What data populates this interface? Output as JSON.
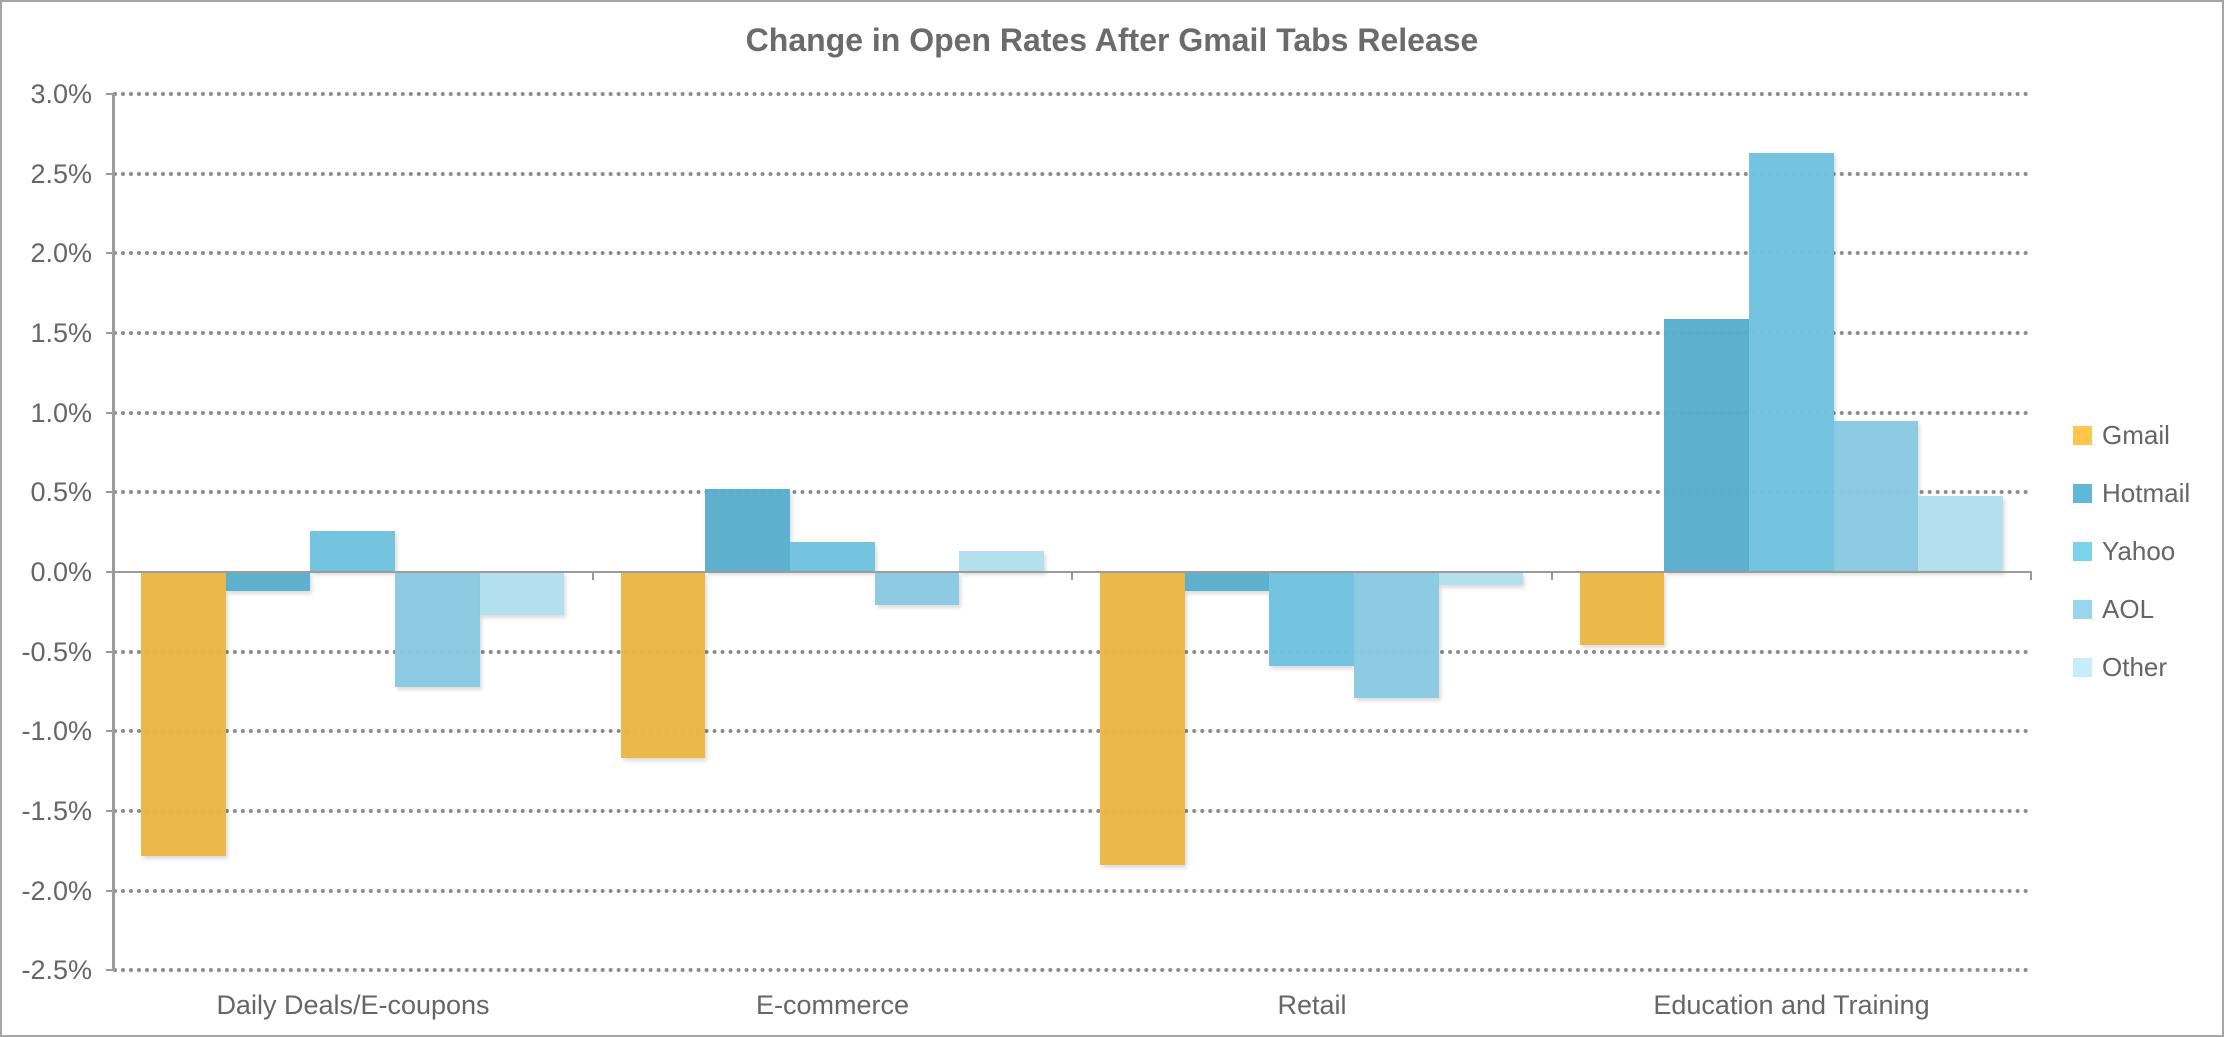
{
  "chart_data": {
    "type": "bar",
    "title": "Change in Open Rates After Gmail Tabs Release",
    "xlabel": "",
    "ylabel": "",
    "ylim": [
      -0.025,
      0.03
    ],
    "y_ticks": [
      "3.0%",
      "2.5%",
      "2.0%",
      "1.5%",
      "1.0%",
      "0.5%",
      "0.0%",
      "-0.5%",
      "-1.0%",
      "-1.5%",
      "-2.0%",
      "-2.5%"
    ],
    "grid": true,
    "legend_position": "right",
    "categories": [
      "Daily Deals/E-coupons",
      "E-commerce",
      "Retail",
      "Education and Training"
    ],
    "series": [
      {
        "name": "Gmail",
        "color": "#ebb744",
        "legend_color": "#fec64d",
        "values": [
          -1.78,
          -1.17,
          -1.84,
          -0.46
        ]
      },
      {
        "name": "Hotmail",
        "color": "#58aecd",
        "legend_color": "#60b8d8",
        "values": [
          -0.12,
          0.52,
          -0.12,
          1.59
        ]
      },
      {
        "name": "Yahoo",
        "color": "#70c3e0",
        "legend_color": "#7cd3ee",
        "values": [
          0.26,
          0.19,
          -0.59,
          2.63
        ]
      },
      {
        "name": "AOL",
        "color": "#8acae3",
        "legend_color": "#98d6ee",
        "values": [
          -0.72,
          -0.21,
          -0.79,
          0.95
        ]
      },
      {
        "name": "Other",
        "color": "#b2e0ed",
        "legend_color": "#c7eef8",
        "values": [
          -0.27,
          0.13,
          -0.08,
          0.48
        ]
      }
    ],
    "units": "percent"
  }
}
